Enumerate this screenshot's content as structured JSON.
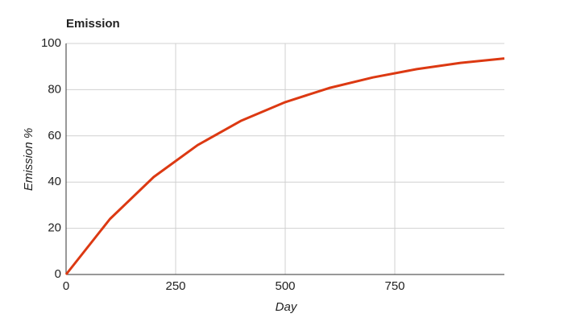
{
  "chart_data": {
    "type": "line",
    "title": "Emission",
    "x_label": "Day",
    "y_label": "Emission %",
    "x": [
      0,
      100,
      200,
      300,
      400,
      500,
      600,
      700,
      800,
      900,
      1000
    ],
    "series": [
      {
        "name": "Emission",
        "color": "#dc3912",
        "values": [
          0,
          24,
          42.2,
          56,
          66.6,
          74.6,
          80.7,
          85.3,
          88.9,
          91.6,
          93.5
        ]
      }
    ],
    "xlim": [
      0,
      1000
    ],
    "xticks": [
      0,
      250,
      500,
      750
    ],
    "ylim": [
      0,
      100
    ],
    "yticks": [
      0,
      20,
      40,
      60,
      80,
      100
    ],
    "grid": true
  }
}
